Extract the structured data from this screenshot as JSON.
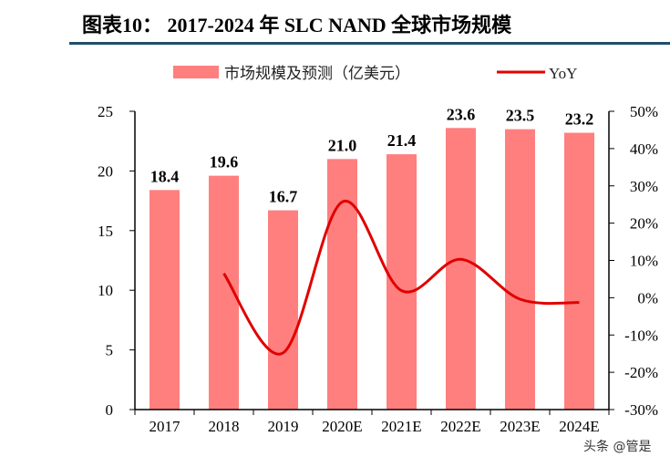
{
  "title": "图表10：  2017-2024 年 SLC NAND  全球市场规模",
  "watermark": "头条 @管是",
  "chart_data": {
    "type": "bar",
    "categories": [
      "2017",
      "2018",
      "2019",
      "2020E",
      "2021E",
      "2022E",
      "2023E",
      "2024E"
    ],
    "series": [
      {
        "name": "市场规模及预测（亿美元）",
        "type": "bar",
        "axis": "left",
        "color": "#ff7f7f",
        "values": [
          18.4,
          19.6,
          16.7,
          21.0,
          21.4,
          23.6,
          23.5,
          23.2
        ]
      },
      {
        "name": "YoY",
        "type": "line",
        "axis": "right",
        "color": "#e00000",
        "smooth": true,
        "values": [
          null,
          6.5,
          -14.8,
          25.7,
          1.9,
          10.3,
          -0.4,
          -1.3
        ]
      }
    ],
    "left_axis": {
      "ylim": [
        0,
        25
      ],
      "ticks": [
        0,
        5,
        10,
        15,
        20,
        25
      ]
    },
    "right_axis": {
      "ylim": [
        -30,
        50
      ],
      "ticks": [
        -30,
        -20,
        -10,
        0,
        10,
        20,
        30,
        40,
        50
      ],
      "unit": "%"
    },
    "data_labels": [
      "18.4",
      "19.6",
      "16.7",
      "21.0",
      "21.4",
      "23.6",
      "23.5",
      "23.2"
    ],
    "legend_position": "top",
    "grid": false
  }
}
